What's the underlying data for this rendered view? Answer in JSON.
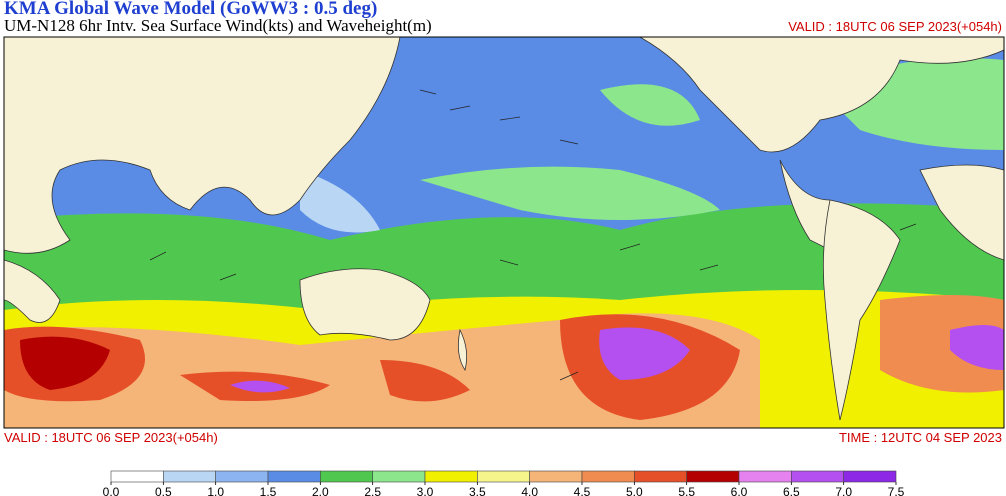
{
  "header": {
    "title": "KMA  Global Wave Model (GoWW3 : 0.5 deg)",
    "subtitle": "UM-N128  6hr Intv. Sea Surface Wind(kts) and Waveheight(m)",
    "valid": "VALID : 18UTC 06 SEP 2023(+054h)"
  },
  "footer": {
    "valid": "VALID : 18UTC 06 SEP 2023(+054h)",
    "time": "TIME : 12UTC 04 SEP 2023"
  },
  "colorbar": {
    "colors": [
      "#ffffff",
      "#b9d7f5",
      "#8cb4f0",
      "#5a8ce6",
      "#50c850",
      "#8ce68c",
      "#f0f000",
      "#f5f58c",
      "#f5b478",
      "#f08c50",
      "#e65028",
      "#b40000",
      "#e682f0",
      "#b450f0",
      "#8c28e6"
    ],
    "ticks": [
      {
        "value": 0,
        "label": "0.0"
      },
      {
        "value": 0.5,
        "label": "0.5"
      },
      {
        "value": 1,
        "label": "1.0"
      },
      {
        "value": 1.5,
        "label": "1.5"
      },
      {
        "value": 2,
        "label": "2.0"
      },
      {
        "value": 2.5,
        "label": "2.5"
      },
      {
        "value": 3,
        "label": "3.0"
      },
      {
        "value": 3.5,
        "label": "3.5"
      },
      {
        "value": 4,
        "label": "4.0"
      },
      {
        "value": 4.5,
        "label": "4.5"
      },
      {
        "value": 5,
        "label": "5.0"
      },
      {
        "value": 5.5,
        "label": "5.5"
      },
      {
        "value": 6,
        "label": "6.0"
      },
      {
        "value": 6.5,
        "label": "6.5"
      },
      {
        "value": 7,
        "label": "7.0"
      },
      {
        "value": 7.5,
        "label": "7.5"
      }
    ]
  }
}
